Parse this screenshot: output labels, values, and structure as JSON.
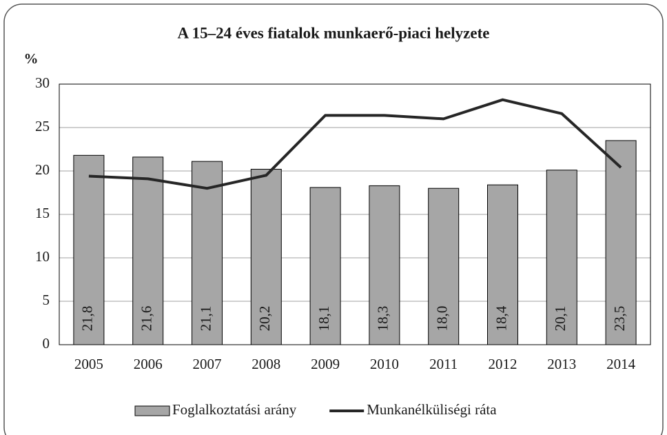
{
  "chart_data": {
    "type": "bar",
    "title": "A 15–24 éves fiatalok munkaerő-piaci helyzete",
    "y_label": "%",
    "categories": [
      "2005",
      "2006",
      "2007",
      "2008",
      "2009",
      "2010",
      "2011",
      "2012",
      "2013",
      "2014"
    ],
    "series": [
      {
        "name": "Foglalkoztatási arány",
        "type": "bar",
        "color": "#a6a6a6",
        "values": [
          21.8,
          21.6,
          21.1,
          20.2,
          18.1,
          18.3,
          18.0,
          18.4,
          20.1,
          23.5
        ],
        "value_labels": [
          "21,8",
          "21,6",
          "21,1",
          "20,2",
          "18,1",
          "18,3",
          "18,0",
          "18,4",
          "20,1",
          "23,5"
        ]
      },
      {
        "name": "Munkanélküliségi ráta",
        "type": "line",
        "color": "#262626",
        "values": [
          19.4,
          19.1,
          18.0,
          19.5,
          26.4,
          26.4,
          26.0,
          28.2,
          26.6,
          20.4
        ]
      }
    ],
    "ylim": [
      0,
      30
    ],
    "yticks": [
      0,
      5,
      10,
      15,
      20,
      25,
      30
    ],
    "grid": true,
    "legend": "bottom"
  }
}
